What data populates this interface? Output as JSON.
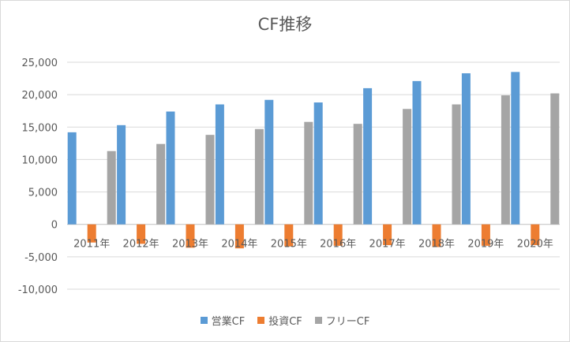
{
  "chart_data": {
    "type": "bar",
    "title": "CF推移",
    "categories": [
      "2011年",
      "2012年",
      "2013年",
      "2014年",
      "2015年",
      "2016年",
      "2017年",
      "2018年",
      "2019年",
      "2020年"
    ],
    "series": [
      {
        "name": "営業CF",
        "color": "#5b9bd5",
        "values": [
          14200,
          15300,
          17400,
          18500,
          19200,
          18800,
          21000,
          22100,
          23300,
          23500
        ]
      },
      {
        "name": "投資CF",
        "color": "#ed7d31",
        "values": [
          -2800,
          -3000,
          -3600,
          -3700,
          -3400,
          -3300,
          -3200,
          -3500,
          -3300,
          -3200
        ]
      },
      {
        "name": "フリーCF",
        "color": "#a5a5a5",
        "values": [
          11300,
          12400,
          13800,
          14700,
          15800,
          15500,
          17800,
          18500,
          19900,
          20200
        ]
      }
    ],
    "yticks": [
      "25,000",
      "20,000",
      "15,000",
      "10,000",
      "5,000",
      "0",
      "-5,000",
      "-10,000"
    ],
    "ylim": [
      -10000,
      25000
    ],
    "grid": true,
    "legend_position": "bottom"
  }
}
